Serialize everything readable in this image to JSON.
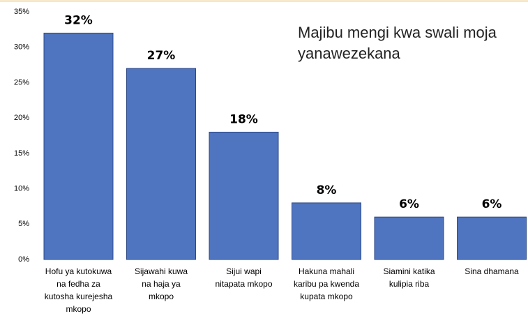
{
  "chart_data": {
    "type": "bar",
    "annotation": [
      "Majibu mengi kwa swali moja",
      "yanawezekana"
    ],
    "categories": [
      [
        "Hofu ya kutokuwa",
        "na fedha za",
        "kutosha kurejesha",
        "mkopo"
      ],
      [
        "Sijawahi kuwa",
        "na haja ya",
        "mkopo"
      ],
      [
        "Sijui wapi",
        "nitapata mkopo"
      ],
      [
        "Hakuna mahali",
        "karibu pa kwenda",
        "kupata mkopo"
      ],
      [
        "Siamini katika",
        "kulipia riba"
      ],
      [
        "Sina dhamana"
      ]
    ],
    "values": [
      32,
      27,
      18,
      8,
      6,
      6
    ],
    "value_labels": [
      "32%",
      "27%",
      "18%",
      "8%",
      "6%",
      "6%"
    ],
    "color": "#4f74c0",
    "ylim": [
      0,
      35
    ],
    "yticks": [
      {
        "value": 0,
        "label": "0%"
      },
      {
        "value": 5,
        "label": "5%"
      },
      {
        "value": 10,
        "label": "10%"
      },
      {
        "value": 15,
        "label": "15%"
      },
      {
        "value": 20,
        "label": "20%"
      },
      {
        "value": 25,
        "label": "25%"
      },
      {
        "value": 30,
        "label": "30%"
      },
      {
        "value": 35,
        "label": "35%"
      }
    ]
  }
}
